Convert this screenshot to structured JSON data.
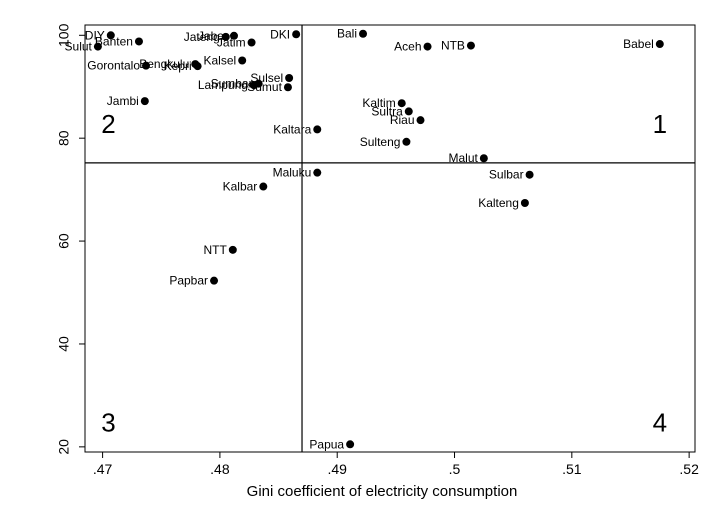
{
  "chart_data": {
    "type": "scatter",
    "title": "",
    "xlabel": "Gini coefficient of electricity consumption",
    "ylabel": "",
    "xlim": [
      0.4685,
      0.5205
    ],
    "ylim": [
      19,
      102
    ],
    "grid": false,
    "legend": "none",
    "x_ticks": [
      0.47,
      0.48,
      0.49,
      0.5,
      0.51,
      0.52
    ],
    "x_tick_labels": [
      ".47",
      ".48",
      ".49",
      ".5",
      ".51",
      ".52"
    ],
    "y_ticks": [
      20,
      40,
      60,
      80,
      100
    ],
    "y_tick_labels": [
      "20",
      "40",
      "60",
      "80",
      "100"
    ],
    "reference_lines": {
      "x": 0.487,
      "y": 75.2
    },
    "quadrant_labels": [
      {
        "text": "1",
        "x": 0.5175,
        "y": 81
      },
      {
        "text": "2",
        "x": 0.4705,
        "y": 81
      },
      {
        "text": "3",
        "x": 0.4705,
        "y": 23
      },
      {
        "text": "4",
        "x": 0.5175,
        "y": 23
      }
    ],
    "points": [
      {
        "label": "DIY",
        "x": 0.4707,
        "y": 100.0,
        "pos": "left"
      },
      {
        "label": "Banten",
        "x": 0.4731,
        "y": 98.8,
        "pos": "left"
      },
      {
        "label": "Sulut",
        "x": 0.4696,
        "y": 97.8,
        "pos": "left"
      },
      {
        "label": "Jateng",
        "x": 0.4805,
        "y": 99.7,
        "pos": "left"
      },
      {
        "label": "Jabar",
        "x": 0.4812,
        "y": 99.9,
        "pos": "left"
      },
      {
        "label": "Jatim",
        "x": 0.4827,
        "y": 98.6,
        "pos": "left"
      },
      {
        "label": "DKI",
        "x": 0.4865,
        "y": 100.2,
        "pos": "left"
      },
      {
        "label": "Bali",
        "x": 0.4922,
        "y": 100.3,
        "pos": "left"
      },
      {
        "label": "Aceh",
        "x": 0.4977,
        "y": 97.8,
        "pos": "left"
      },
      {
        "label": "NTB",
        "x": 0.5014,
        "y": 98.0,
        "pos": "left"
      },
      {
        "label": "Babel",
        "x": 0.5175,
        "y": 98.3,
        "pos": "left"
      },
      {
        "label": "Kalsel",
        "x": 0.4819,
        "y": 95.1,
        "pos": "left"
      },
      {
        "label": "Gorontalo",
        "x": 0.4737,
        "y": 94.1,
        "pos": "left"
      },
      {
        "label": "Bengkulu",
        "x": 0.4779,
        "y": 94.4,
        "pos": "left"
      },
      {
        "label": "Kepri",
        "x": 0.4781,
        "y": 94.0,
        "pos": "left"
      },
      {
        "label": "Sulsel",
        "x": 0.4859,
        "y": 91.7,
        "pos": "left"
      },
      {
        "label": "Lampung",
        "x": 0.4829,
        "y": 90.3,
        "pos": "left"
      },
      {
        "label": "Sumbar",
        "x": 0.4833,
        "y": 90.6,
        "pos": "left"
      },
      {
        "label": "Sumut",
        "x": 0.4858,
        "y": 89.9,
        "pos": "left"
      },
      {
        "label": "Kaltim",
        "x": 0.4955,
        "y": 86.8,
        "pos": "left"
      },
      {
        "label": "Jambi",
        "x": 0.4736,
        "y": 87.2,
        "pos": "left"
      },
      {
        "label": "Sultra",
        "x": 0.4961,
        "y": 85.2,
        "pos": "left"
      },
      {
        "label": "Riau",
        "x": 0.4971,
        "y": 83.5,
        "pos": "left"
      },
      {
        "label": "Kaltara",
        "x": 0.4883,
        "y": 81.7,
        "pos": "left"
      },
      {
        "label": "Sulteng",
        "x": 0.4959,
        "y": 79.3,
        "pos": "left"
      },
      {
        "label": "Malut",
        "x": 0.5025,
        "y": 76.1,
        "pos": "left"
      },
      {
        "label": "Maluku",
        "x": 0.4883,
        "y": 73.3,
        "pos": "left"
      },
      {
        "label": "Sulbar",
        "x": 0.5064,
        "y": 72.9,
        "pos": "left"
      },
      {
        "label": "Kalbar",
        "x": 0.4837,
        "y": 70.6,
        "pos": "left"
      },
      {
        "label": "Kalteng",
        "x": 0.506,
        "y": 67.4,
        "pos": "left"
      },
      {
        "label": "NTT",
        "x": 0.4811,
        "y": 58.3,
        "pos": "left"
      },
      {
        "label": "Papbar",
        "x": 0.4795,
        "y": 52.3,
        "pos": "left"
      },
      {
        "label": "Papua",
        "x": 0.4911,
        "y": 20.5,
        "pos": "left"
      }
    ]
  }
}
